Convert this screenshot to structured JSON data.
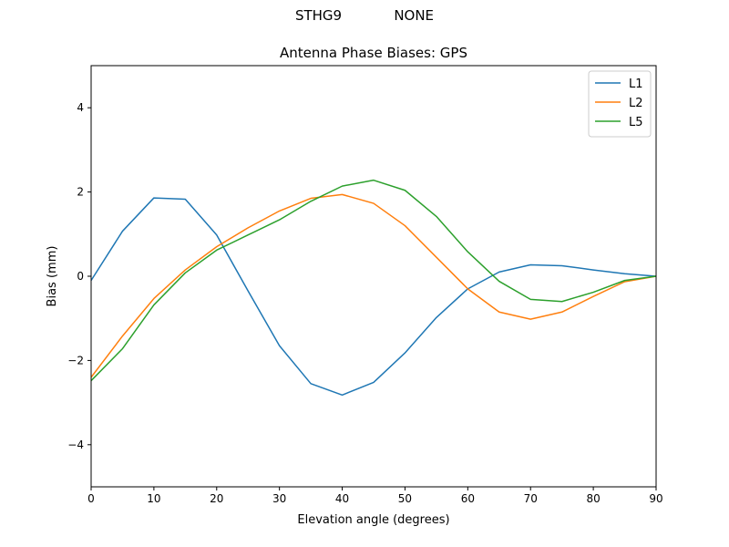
{
  "header": {
    "station": "STHG9",
    "radome": "NONE"
  },
  "chart_data": {
    "type": "line",
    "title": "Antenna Phase Biases: GPS",
    "xlabel": "Elevation angle (degrees)",
    "ylabel": "Bias (mm)",
    "xlim": [
      0,
      90
    ],
    "ylim": [
      -5,
      5
    ],
    "xticks": [
      0,
      10,
      20,
      30,
      40,
      50,
      60,
      70,
      80,
      90
    ],
    "yticks": [
      -4,
      -2,
      0,
      2,
      4
    ],
    "ytick_labels": [
      "−4",
      "−2",
      "0",
      "2",
      "4"
    ],
    "grid": false,
    "legend_position": "top-right",
    "x": [
      0,
      5,
      10,
      15,
      20,
      25,
      30,
      35,
      40,
      45,
      50,
      55,
      60,
      65,
      70,
      75,
      80,
      85,
      90
    ],
    "series": [
      {
        "name": "L1",
        "color": "#1f77b4",
        "values": [
          -0.1,
          1.07,
          1.86,
          1.83,
          0.98,
          -0.35,
          -1.65,
          -2.55,
          -2.82,
          -2.52,
          -1.82,
          -0.98,
          -0.3,
          0.1,
          0.27,
          0.25,
          0.15,
          0.06,
          0.0
        ]
      },
      {
        "name": "L2",
        "color": "#ff7f0e",
        "values": [
          -2.4,
          -1.42,
          -0.53,
          0.15,
          0.7,
          1.15,
          1.55,
          1.85,
          1.94,
          1.73,
          1.2,
          0.45,
          -0.3,
          -0.85,
          -1.02,
          -0.85,
          -0.48,
          -0.13,
          0.0
        ]
      },
      {
        "name": "L5",
        "color": "#2ca02c",
        "values": [
          -2.48,
          -1.72,
          -0.68,
          0.08,
          0.62,
          0.98,
          1.34,
          1.78,
          2.14,
          2.28,
          2.04,
          1.42,
          0.58,
          -0.12,
          -0.55,
          -0.6,
          -0.38,
          -0.1,
          0.0
        ]
      }
    ]
  }
}
